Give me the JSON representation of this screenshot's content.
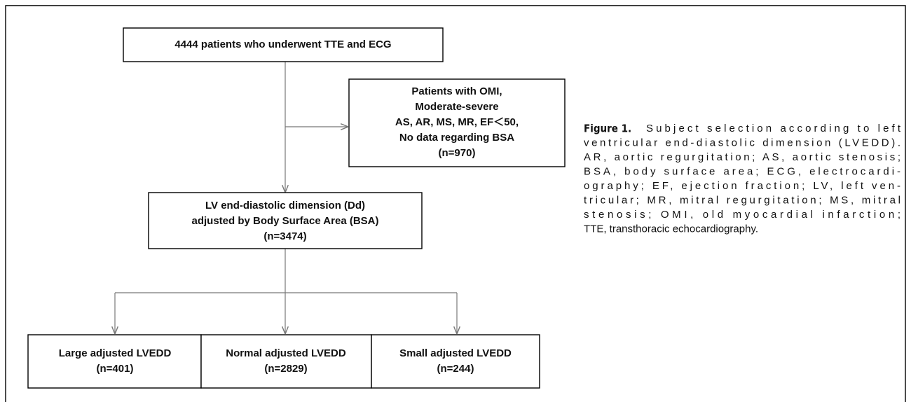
{
  "nodes": [
    {
      "lines": [
        "4444 patients who underwent TTE and ECG"
      ]
    },
    {
      "lines": [
        "Patients with OMI,",
        "Moderate-severe",
        "AS, AR, MS, MR, EF＜50,",
        "No data regarding BSA",
        "(n=970)"
      ]
    },
    {
      "lines": [
        "LV end-diastolic dimension (Dd)",
        "adjusted by Body Surface Area (BSA)",
        "(n=3474)"
      ]
    },
    {
      "lines": [
        "Large adjusted LVEDD",
        "(n=401)"
      ]
    },
    {
      "lines": [
        "Normal adjusted LVEDD",
        "(n=2829)"
      ]
    },
    {
      "lines": [
        "Small adjusted LVEDD",
        "(n=244)"
      ]
    }
  ],
  "caption": {
    "label": "Figure 1.",
    "lines": [
      "Subject selection according to left",
      "ventricular end-diastolic dimension (LVEDD).",
      "AR, aortic regurgitation; AS, aortic stenosis;",
      "BSA, body surface area; ECG, electrocardi-",
      "ography; EF, ejection fraction; LV, left ven-",
      "tricular; MR, mitral regurgitation; MS, mitral",
      "stenosis; OMI, old myocardial infarction;",
      "TTE, transthoracic echocardiography."
    ]
  }
}
